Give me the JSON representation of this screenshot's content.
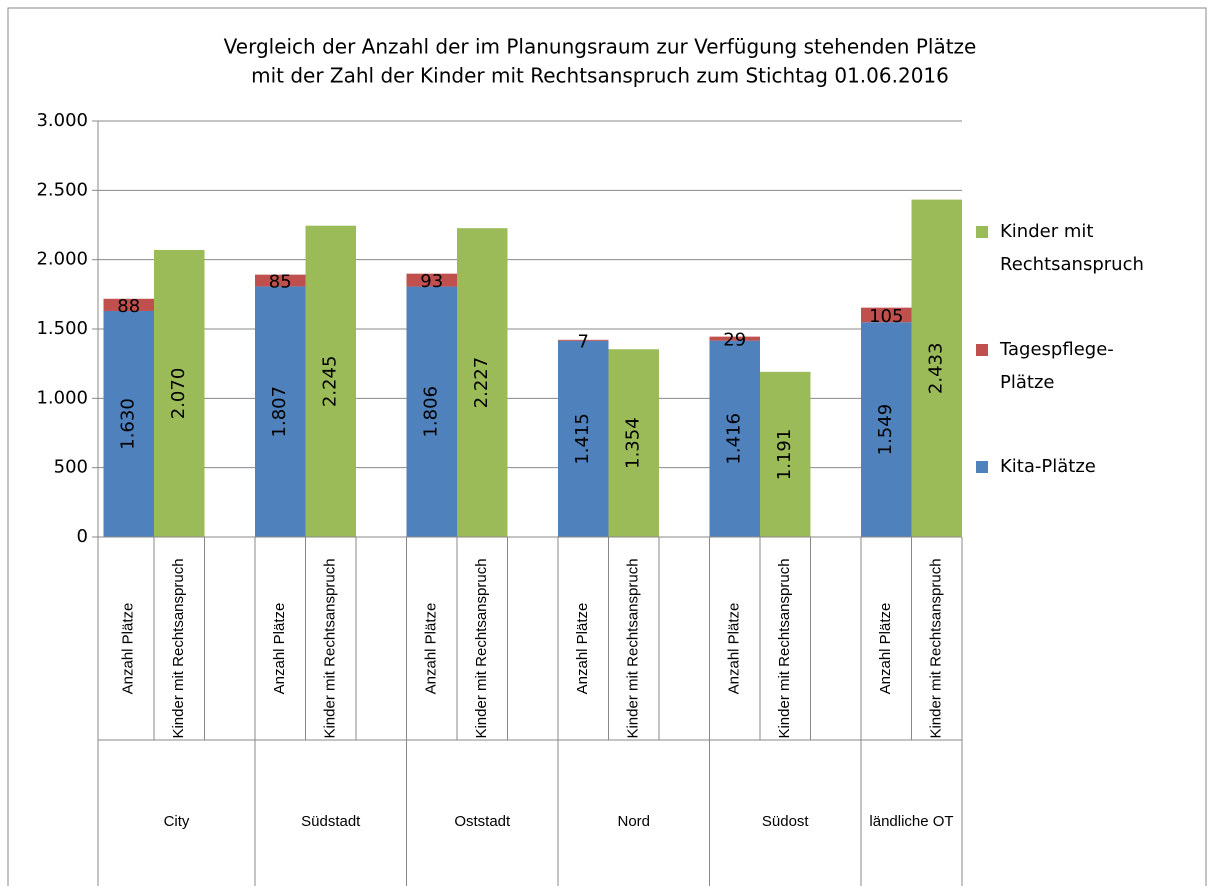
{
  "chart_data": {
    "type": "bar",
    "title": [
      "Vergleich der  Anzahl der im Planungsraum zur Verfügung stehenden Plätze",
      "mit der Zahl der Kinder mit Rechtsanspruch zum Stichtag 01.06.2016"
    ],
    "groups": [
      "City",
      "Südstadt",
      "Oststadt",
      "Nord",
      "Südost",
      "ländliche OT"
    ],
    "categories": [
      "Anzahl Plätze",
      "Kinder mit Rechtsanspruch",
      "Anzahl Plätze",
      "Kinder mit Rechtsanspruch",
      "Anzahl Plätze",
      "Kinder mit Rechtsanspruch",
      "Anzahl Plätze",
      "Kinder mit Rechtsanspruch",
      "Anzahl Plätze",
      "Kinder mit Rechtsanspruch",
      "Anzahl Plätze",
      "Kinder mit Rechtsanspruch"
    ],
    "stacked": true,
    "series": [
      {
        "name": "Kita-Plätze",
        "color": "#4f81bd",
        "values": [
          1630,
          null,
          1807,
          null,
          1806,
          null,
          1415,
          null,
          1416,
          null,
          1549,
          null
        ],
        "value_labels": [
          "1.630",
          null,
          "1.807",
          null,
          "1.806",
          null,
          "1.415",
          null,
          "1.416",
          null,
          "1.549",
          null
        ]
      },
      {
        "name": "Tagespflege-Plätze",
        "color": "#c0504d",
        "values": [
          88,
          null,
          85,
          null,
          93,
          null,
          7,
          null,
          29,
          null,
          105,
          null
        ]
      },
      {
        "name": "Kinder mit Rechtsanspruch",
        "color": "#9bbb59",
        "values": [
          null,
          2070,
          null,
          2245,
          null,
          2227,
          null,
          1354,
          null,
          1191,
          null,
          2433
        ],
        "value_labels": [
          null,
          "2.070",
          null,
          "2.245",
          null,
          "2.227",
          null,
          "1.354",
          null,
          "1.191",
          null,
          "2.433"
        ]
      }
    ],
    "ylim": [
      0,
      3000
    ],
    "yticks": [
      0,
      500,
      {
        "value": 1000,
        "label": "1.000"
      },
      {
        "value": 1500,
        "label": "1.500"
      },
      {
        "value": 2000,
        "label": "2.000"
      },
      {
        "value": 2500,
        "label": "2.500"
      },
      {
        "value": 3000,
        "label": "3.000"
      }
    ],
    "grid": true,
    "legend": "right"
  }
}
